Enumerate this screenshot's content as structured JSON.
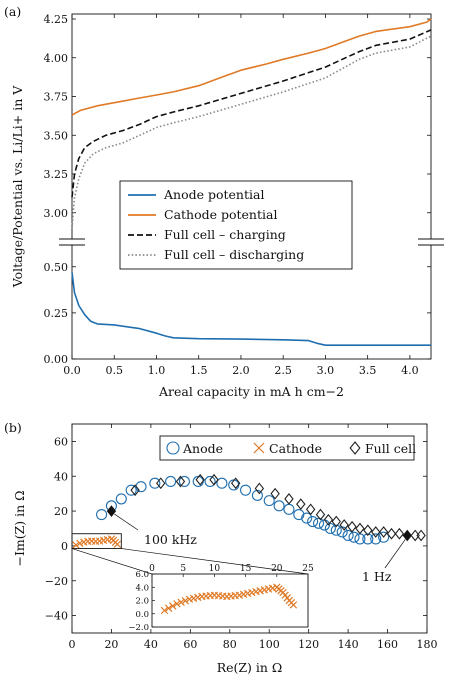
{
  "panel_a_label": "(a)",
  "panel_b_label": "(b)",
  "colors": {
    "anode": "#1f6fb0",
    "cathode": "#e07a26",
    "full": "#111111",
    "discharge": "#888888"
  },
  "chart_data": [
    {
      "type": "line",
      "xlabel": "Areal capacity in mA h cm−2",
      "ylabel": "Voltage/Potential vs. Li/Li+ in V",
      "xlim": [
        0,
        4.25
      ],
      "x_ticks": [
        "0.0",
        "0.5",
        "1.0",
        "1.5",
        "2.0",
        "2.5",
        "3.0",
        "3.5",
        "4.0"
      ],
      "y_ticks_upper": [
        "3.00",
        "3.25",
        "3.50",
        "3.75",
        "4.00",
        "4.25"
      ],
      "y_ticks_lower": [
        "0.00",
        "0.25",
        "0.50"
      ],
      "ylim_upper": [
        2.85,
        4.25
      ],
      "ylim_lower": [
        0,
        0.58
      ],
      "axis_break": true,
      "legend_position": "center",
      "series": [
        {
          "name": "Anode potential",
          "color": "#1f6fb0",
          "dash": "solid",
          "x": [
            0,
            0.03,
            0.08,
            0.15,
            0.22,
            0.3,
            0.5,
            0.8,
            1.0,
            1.1,
            1.2,
            1.5,
            2.0,
            2.5,
            2.8,
            2.9,
            3.0,
            3.5,
            4.0,
            4.25
          ],
          "y": [
            0.47,
            0.36,
            0.29,
            0.24,
            0.205,
            0.19,
            0.185,
            0.165,
            0.14,
            0.125,
            0.115,
            0.11,
            0.108,
            0.104,
            0.1,
            0.085,
            0.075,
            0.075,
            0.075,
            0.075
          ]
        },
        {
          "name": "Cathode potential",
          "color": "#e07a26",
          "dash": "solid",
          "x": [
            0,
            0.1,
            0.3,
            0.5,
            0.8,
            1.0,
            1.2,
            1.5,
            1.8,
            2.0,
            2.3,
            2.5,
            2.8,
            3.0,
            3.2,
            3.4,
            3.6,
            4.0,
            4.2,
            4.25
          ],
          "y": [
            3.63,
            3.66,
            3.69,
            3.71,
            3.74,
            3.76,
            3.78,
            3.82,
            3.88,
            3.92,
            3.96,
            3.99,
            4.03,
            4.06,
            4.1,
            4.14,
            4.17,
            4.2,
            4.23,
            4.25
          ]
        },
        {
          "name": "Full cell – charging",
          "color": "#111111",
          "dash": "dashed",
          "x": [
            0,
            0.03,
            0.08,
            0.15,
            0.25,
            0.4,
            0.6,
            0.8,
            1.0,
            1.2,
            1.5,
            2.0,
            2.5,
            3.0,
            3.2,
            3.4,
            3.6,
            4.0,
            4.25
          ],
          "y": [
            3.1,
            3.25,
            3.35,
            3.42,
            3.46,
            3.5,
            3.53,
            3.57,
            3.62,
            3.65,
            3.69,
            3.77,
            3.85,
            3.94,
            3.99,
            4.04,
            4.08,
            4.12,
            4.18
          ]
        },
        {
          "name": "Full cell – discharging",
          "color": "#888888",
          "dash": "dotted",
          "x": [
            0,
            0.03,
            0.08,
            0.15,
            0.25,
            0.4,
            0.6,
            0.8,
            1.0,
            1.2,
            1.5,
            2.0,
            2.5,
            3.0,
            3.2,
            3.4,
            3.6,
            4.0,
            4.25
          ],
          "y": [
            2.9,
            3.1,
            3.22,
            3.32,
            3.38,
            3.42,
            3.45,
            3.5,
            3.55,
            3.58,
            3.62,
            3.7,
            3.78,
            3.87,
            3.93,
            3.99,
            4.03,
            4.07,
            4.14
          ]
        }
      ]
    },
    {
      "type": "scatter",
      "xlabel": "Re(Z) in Ω",
      "ylabel": "−Im(Z) in Ω",
      "xlim": [
        0,
        180
      ],
      "ylim": [
        -50,
        70
      ],
      "x_ticks": [
        "0",
        "20",
        "40",
        "60",
        "80",
        "100",
        "120",
        "140",
        "160",
        "180"
      ],
      "y_ticks": [
        "−40",
        "−20",
        "0",
        "20",
        "40",
        "60"
      ],
      "legend_position": "top-right",
      "annotations": [
        "100 kHz",
        "1 Hz"
      ],
      "series": [
        {
          "name": "Anode",
          "marker": "circle",
          "color": "#1f6fb0",
          "x": [
            15,
            20,
            25,
            30,
            35,
            42,
            50,
            57,
            64,
            70,
            76,
            82,
            88,
            94,
            100,
            105,
            110,
            115,
            119,
            122,
            125,
            128,
            131,
            134,
            137,
            140,
            143,
            146,
            150,
            154,
            158
          ],
          "y": [
            18,
            23,
            27,
            32,
            34,
            36,
            37,
            37,
            37,
            37,
            36,
            35,
            32,
            29,
            26,
            23,
            21,
            18,
            16,
            14,
            13,
            12,
            10,
            9,
            8,
            6,
            5,
            4,
            4,
            4,
            5
          ]
        },
        {
          "name": "Cathode",
          "marker": "x",
          "color": "#e07a26",
          "x": [
            2,
            4,
            6,
            8,
            10,
            12,
            14,
            16,
            18,
            20,
            21,
            22,
            23
          ],
          "y": [
            0.5,
            1.5,
            2.2,
            2.6,
            2.8,
            2.6,
            2.8,
            3.2,
            3.6,
            4.0,
            3.2,
            2.0,
            1.0
          ]
        },
        {
          "name": "Full cell",
          "marker": "diamond",
          "color": "#222222",
          "x": [
            20,
            32,
            45,
            55,
            65,
            72,
            83,
            95,
            103,
            110,
            116,
            121,
            126,
            130,
            134,
            138,
            142,
            146,
            150,
            154,
            158,
            162,
            166,
            170,
            174,
            177
          ],
          "y": [
            20,
            32,
            36,
            37,
            38,
            38,
            36,
            33,
            30,
            27,
            24,
            21,
            18,
            15,
            14,
            12,
            11,
            10,
            9,
            8,
            8,
            7,
            7,
            6,
            6,
            6
          ]
        }
      ],
      "highlight_points": [
        {
          "series": "Full cell",
          "x": 20,
          "y": 20,
          "label": "100 kHz"
        },
        {
          "series": "Full cell",
          "x": 170,
          "y": 6,
          "label": "1 Hz"
        }
      ],
      "inset": {
        "xlim": [
          0,
          25
        ],
        "ylim": [
          -2,
          6
        ],
        "x_ticks": [
          "0",
          "5",
          "10",
          "15",
          "20",
          "25"
        ],
        "y_ticks": [
          "−2.0",
          "0.0",
          "2.0",
          "4.0",
          "6.0"
        ]
      }
    }
  ]
}
